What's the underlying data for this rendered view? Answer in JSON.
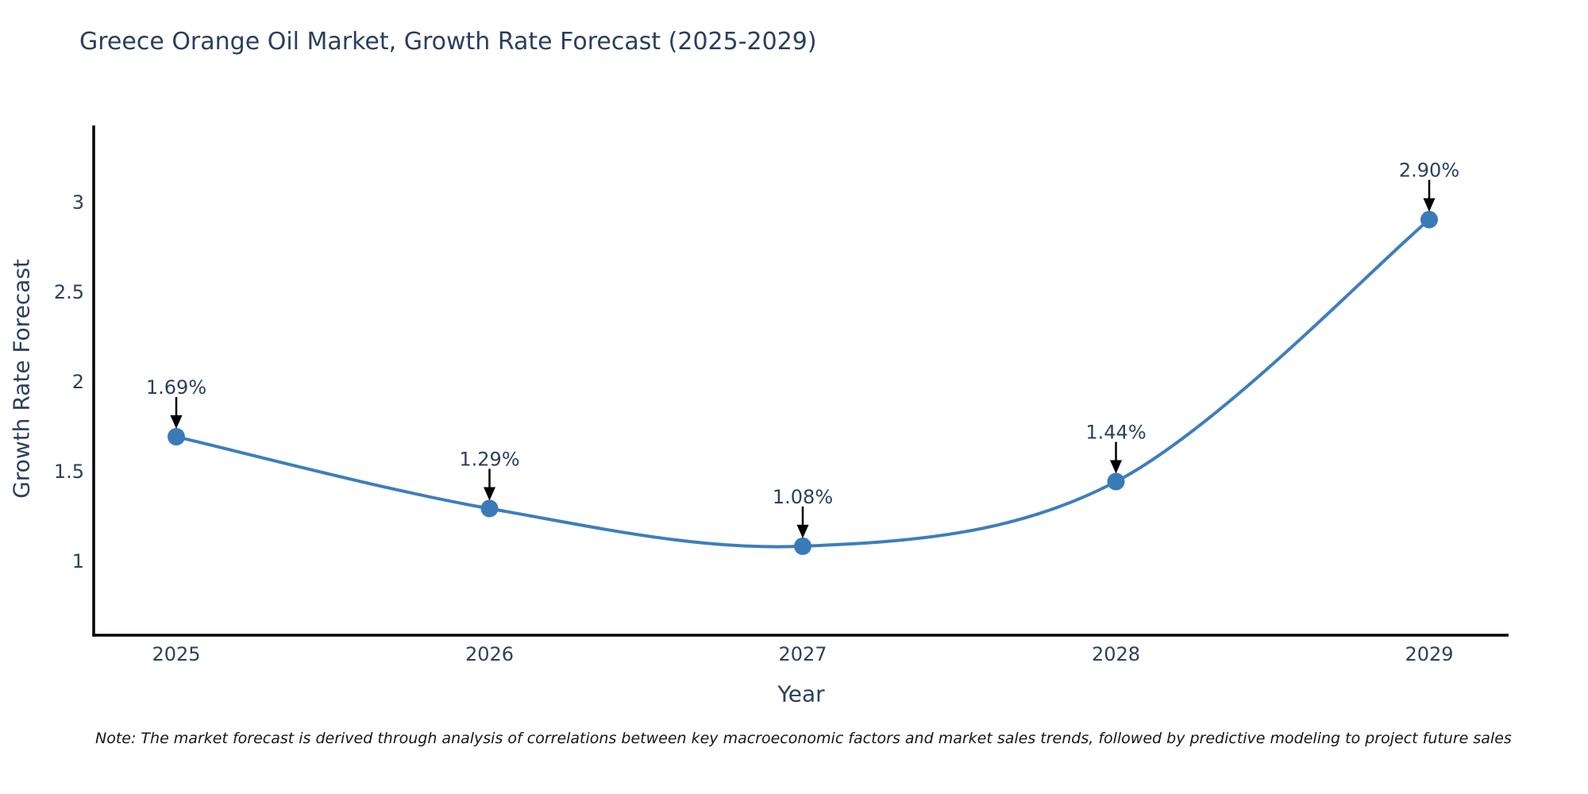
{
  "note": "Note: The market forecast is derived through analysis of correlations between key macroeconomic factors and market sales trends, followed by predictive modeling to project future sales",
  "colors": {
    "line": "#3d7ebc",
    "marker": "#3a7ab8",
    "text": "#2a3f5f",
    "tick_text": "#2f3f5c",
    "axis": "#000000",
    "arrow": "#000000",
    "background": "#ffffff"
  },
  "chart_data": {
    "type": "line",
    "title": "Greece Orange Oil Market, Growth Rate Forecast (2025-2029)",
    "xlabel": "Year",
    "ylabel": "Growth Rate Forecast",
    "x": [
      2025,
      2026,
      2027,
      2028,
      2029
    ],
    "values": [
      1.69,
      1.29,
      1.08,
      1.44,
      2.9
    ],
    "point_labels": [
      "1.69%",
      "1.29%",
      "1.08%",
      "1.44%",
      "2.90%"
    ],
    "xtick_labels": [
      "2025",
      "2026",
      "2027",
      "2028",
      "2029"
    ],
    "yticks": [
      1,
      1.5,
      2,
      2.5,
      3
    ],
    "ytick_labels": [
      "1",
      "1.5",
      "2",
      "2.5",
      "3"
    ],
    "xlim": [
      2024.74,
      2029.25
    ],
    "ylim": [
      0.584,
      3.416
    ],
    "grid": false,
    "legend": "none",
    "line_shape": "spline",
    "marker": "circle",
    "annotation_arrows": true
  }
}
